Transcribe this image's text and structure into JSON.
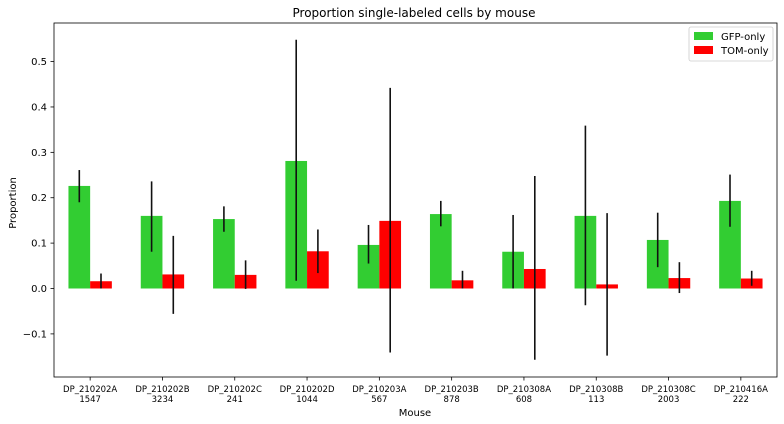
{
  "chart_data": {
    "type": "bar",
    "title": "Proportion single-labeled cells by mouse",
    "xlabel": "Mouse",
    "ylabel": "Proportion",
    "categories": [
      "DP_210202A",
      "DP_210202B",
      "DP_210202C",
      "DP_210202D",
      "DP_210203A",
      "DP_210203B",
      "DP_210308A",
      "DP_210308B",
      "DP_210308C",
      "DP_210416A"
    ],
    "category_counts": [
      "1547",
      "3234",
      "241",
      "1044",
      "567",
      "878",
      "608",
      "113",
      "2003",
      "222"
    ],
    "series": [
      {
        "name": "GFP-only",
        "color": "#32cd32",
        "values": [
          0.226,
          0.16,
          0.153,
          0.281,
          0.096,
          0.164,
          0.081,
          0.16,
          0.107,
          0.193
        ],
        "err_low": [
          0.036,
          0.079,
          0.028,
          0.264,
          0.041,
          0.027,
          0.081,
          0.197,
          0.06,
          0.057
        ],
        "err_high": [
          0.035,
          0.076,
          0.028,
          0.267,
          0.044,
          0.029,
          0.081,
          0.199,
          0.06,
          0.058
        ]
      },
      {
        "name": "TOM-only",
        "color": "#ff0000",
        "values": [
          0.016,
          0.031,
          0.03,
          0.082,
          0.149,
          0.018,
          0.043,
          0.009,
          0.023,
          0.022
        ],
        "err_low": [
          0.016,
          0.087,
          0.031,
          0.048,
          0.29,
          0.018,
          0.2,
          0.157,
          0.033,
          0.016
        ],
        "err_high": [
          0.017,
          0.085,
          0.032,
          0.048,
          0.293,
          0.021,
          0.205,
          0.157,
          0.035,
          0.017
        ]
      }
    ],
    "ylim": [
      -0.195,
      0.585
    ],
    "yticks": [
      "−0.1",
      "0.0",
      "0.1",
      "0.2",
      "0.3",
      "0.4",
      "0.5"
    ],
    "legend_position": "upper right",
    "grid": false
  }
}
